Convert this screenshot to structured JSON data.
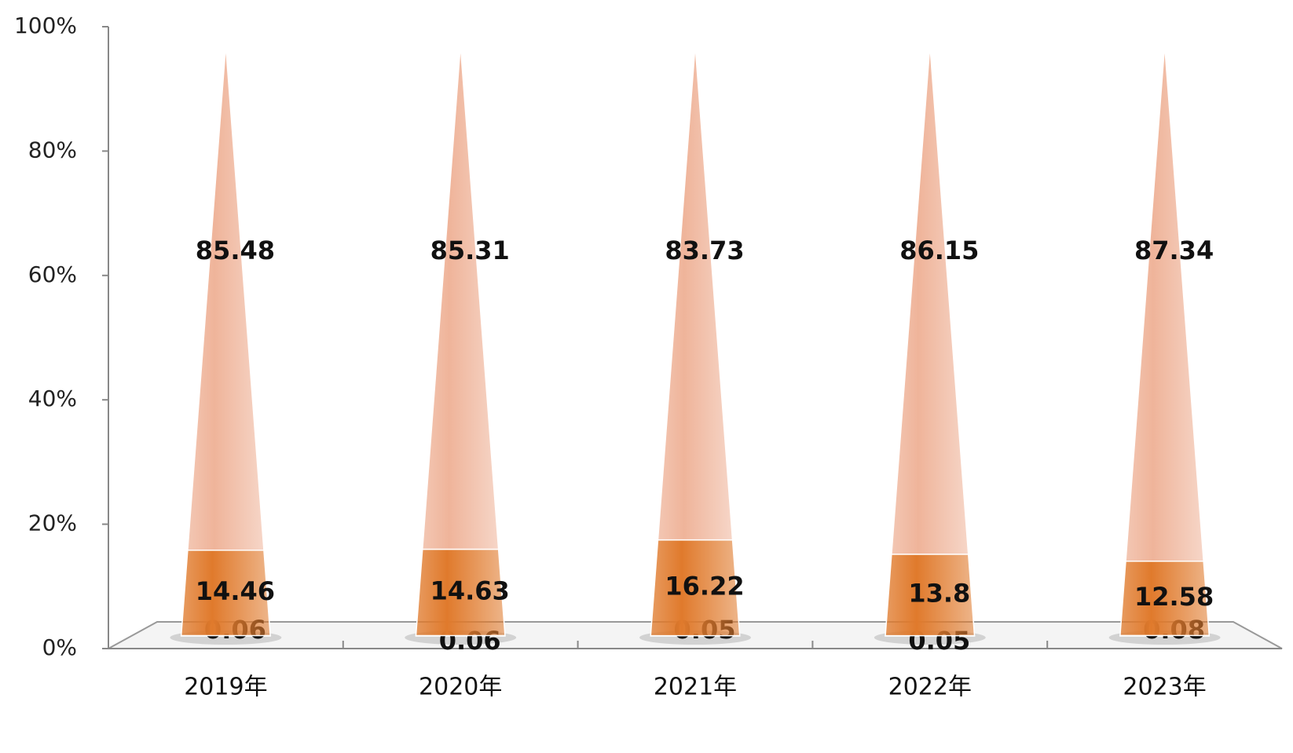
{
  "chart_data": {
    "type": "stacked-cone",
    "categories": [
      "2019年",
      "2020年",
      "2021年",
      "2022年",
      "2023年"
    ],
    "series": [
      {
        "color": "#9e9e9e",
        "values": [
          0.06,
          0.06,
          0.05,
          0.05,
          0.08
        ]
      },
      {
        "color": "#e07a2c",
        "values": [
          14.46,
          14.63,
          16.22,
          13.8,
          12.58
        ]
      },
      {
        "color": "#efb49a",
        "values": [
          85.48,
          85.31,
          83.73,
          86.15,
          87.34
        ]
      }
    ],
    "ylim": [
      0,
      100
    ],
    "yticks": [
      {
        "value": 0,
        "label": "0%"
      },
      {
        "value": 20,
        "label": "20%"
      },
      {
        "value": 40,
        "label": "40%"
      },
      {
        "value": 60,
        "label": "60%"
      },
      {
        "value": 80,
        "label": "80%"
      },
      {
        "value": 100,
        "label": "100%"
      }
    ]
  }
}
